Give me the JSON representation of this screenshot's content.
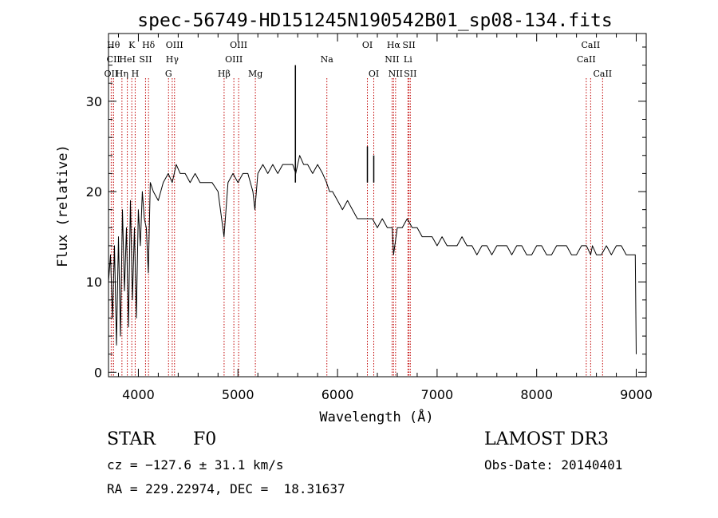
{
  "chart_data": {
    "type": "line",
    "title": "spec-56749-HD151245N190542B01_sp08-134.fits",
    "xlabel": "Wavelength (Å)",
    "ylabel": "Flux (relative)",
    "xlim": [
      3700,
      9100
    ],
    "ylim": [
      -0.5,
      37.5
    ],
    "xticks": [
      4000,
      5000,
      6000,
      7000,
      8000,
      9000
    ],
    "yticks": [
      0,
      10,
      20,
      30
    ],
    "grid": false,
    "series": [
      {
        "color": "#000000",
        "x": [
          3700,
          3720,
          3740,
          3760,
          3780,
          3800,
          3820,
          3840,
          3860,
          3880,
          3900,
          3920,
          3940,
          3960,
          3980,
          4000,
          4020,
          4040,
          4060,
          4080,
          4100,
          4120,
          4150,
          4200,
          4250,
          4300,
          4340,
          4380,
          4420,
          4470,
          4520,
          4570,
          4620,
          4680,
          4740,
          4800,
          4860,
          4900,
          4950,
          5000,
          5050,
          5100,
          5150,
          5170,
          5200,
          5250,
          5300,
          5350,
          5400,
          5450,
          5500,
          5550,
          5580,
          5620,
          5660,
          5700,
          5750,
          5800,
          5850,
          5890,
          5920,
          5950,
          6000,
          6050,
          6100,
          6150,
          6200,
          6250,
          6300,
          6350,
          6400,
          6450,
          6500,
          6550,
          6563,
          6600,
          6650,
          6700,
          6750,
          6800,
          6850,
          6900,
          6950,
          7000,
          7050,
          7100,
          7150,
          7200,
          7250,
          7300,
          7350,
          7400,
          7450,
          7500,
          7550,
          7600,
          7650,
          7700,
          7750,
          7800,
          7850,
          7900,
          7950,
          8000,
          8050,
          8100,
          8150,
          8200,
          8250,
          8300,
          8350,
          8400,
          8450,
          8500,
          8542,
          8560,
          8600,
          8650,
          8700,
          8750,
          8800,
          8850,
          8900,
          8950,
          8990,
          9000
        ],
        "y": [
          10,
          13,
          6,
          14,
          3,
          15,
          4,
          18,
          9,
          16,
          5,
          19,
          8,
          16,
          6,
          18,
          14,
          20,
          17,
          16,
          11,
          21,
          20,
          19,
          21,
          22,
          21,
          23,
          22,
          22,
          21,
          22,
          21,
          21,
          21,
          20,
          15,
          21,
          22,
          21,
          22,
          22,
          20,
          18,
          22,
          23,
          22,
          23,
          22,
          23,
          23,
          23,
          22,
          24,
          23,
          23,
          22,
          23,
          22,
          21,
          20,
          20,
          19,
          18,
          19,
          18,
          17,
          17,
          17,
          17,
          16,
          17,
          16,
          16,
          13,
          16,
          16,
          17,
          16,
          16,
          15,
          15,
          15,
          14,
          15,
          14,
          14,
          14,
          15,
          14,
          14,
          13,
          14,
          14,
          13,
          14,
          14,
          14,
          13,
          14,
          14,
          13,
          13,
          14,
          14,
          13,
          13,
          14,
          14,
          14,
          13,
          13,
          14,
          14,
          13,
          14,
          13,
          13,
          14,
          13,
          14,
          14,
          13,
          13,
          13,
          2
        ]
      }
    ],
    "spikes": [
      {
        "x": 5577,
        "y": 34
      },
      {
        "x": 6300,
        "y": 25
      },
      {
        "x": 6364,
        "y": 24
      }
    ],
    "line_markers": [
      {
        "x": 3727,
        "labels": [
          "OII"
        ],
        "row": 3
      },
      {
        "x": 3750,
        "labels": [
          "Hθ"
        ],
        "row": 1
      },
      {
        "x": 3750,
        "labels": [
          "CII"
        ],
        "row": 2
      },
      {
        "x": 3835,
        "labels": [
          "Hη"
        ],
        "row": 3
      },
      {
        "x": 3889,
        "labels": [
          "HeI"
        ],
        "row": 2
      },
      {
        "x": 3934,
        "labels": [
          "K"
        ],
        "row": 1
      },
      {
        "x": 3968,
        "labels": [
          "H"
        ],
        "row": 3
      },
      {
        "x": 4072,
        "labels": [
          "SII"
        ],
        "row": 2
      },
      {
        "x": 4102,
        "labels": [
          "Hδ"
        ],
        "row": 1
      },
      {
        "x": 4303,
        "labels": [
          "G"
        ],
        "row": 3
      },
      {
        "x": 4340,
        "labels": [
          "Hγ"
        ],
        "row": 2
      },
      {
        "x": 4363,
        "labels": [
          "OIII"
        ],
        "row": 1
      },
      {
        "x": 4861,
        "labels": [
          "Hβ"
        ],
        "row": 3
      },
      {
        "x": 4959,
        "labels": [
          "OIII"
        ],
        "row": 2
      },
      {
        "x": 5007,
        "labels": [
          "OIII"
        ],
        "row": 1
      },
      {
        "x": 5175,
        "labels": [
          "Mg"
        ],
        "row": 3
      },
      {
        "x": 5893,
        "labels": [
          "Na"
        ],
        "row": 2
      },
      {
        "x": 6300,
        "labels": [
          "OI"
        ],
        "row": 1
      },
      {
        "x": 6364,
        "labels": [
          "OI"
        ],
        "row": 3
      },
      {
        "x": 6548,
        "labels": [
          "NII"
        ],
        "row": 2
      },
      {
        "x": 6563,
        "labels": [
          "Hα"
        ],
        "row": 1
      },
      {
        "x": 6583,
        "labels": [
          "NII"
        ],
        "row": 3
      },
      {
        "x": 6707,
        "labels": [
          "Li"
        ],
        "row": 2
      },
      {
        "x": 6717,
        "labels": [
          "SII"
        ],
        "row": 1
      },
      {
        "x": 6731,
        "labels": [
          "SII"
        ],
        "row": 3
      },
      {
        "x": 8498,
        "labels": [
          "CaII"
        ],
        "row": 2
      },
      {
        "x": 8542,
        "labels": [
          "CaII"
        ],
        "row": 1
      },
      {
        "x": 8662,
        "labels": [
          "CaII"
        ],
        "row": 3
      }
    ]
  },
  "info": {
    "object_class": "STAR",
    "subclass": "F0",
    "survey": "LAMOST DR3",
    "cz": "cz = −127.6 ± 31.1 km/s",
    "obs_date": "Obs-Date: 20140401",
    "coords": "RA = 229.22974, DEC =  18.31637"
  }
}
